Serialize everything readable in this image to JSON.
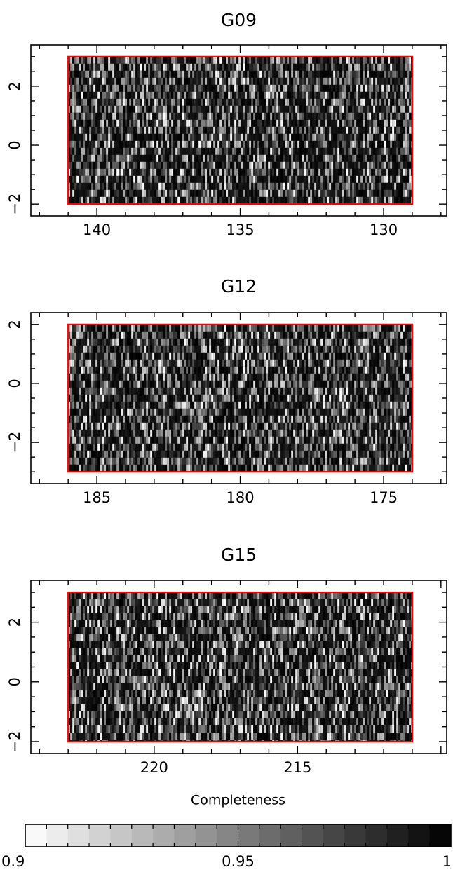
{
  "chart_data": [
    {
      "type": "heatmap",
      "title": "G09",
      "xlim": [
        142.3,
        127.8
      ],
      "ylim": [
        -2.4,
        3.4
      ],
      "x_ticks": [
        140,
        135,
        130
      ],
      "y_ticks": [
        -2,
        0,
        2
      ],
      "x_tick_labels": [
        "140",
        "135",
        "130"
      ],
      "y_tick_labels": [
        "−2",
        "0",
        "2"
      ],
      "region": {
        "ra": [
          141,
          129
        ],
        "dec": [
          -2,
          3
        ],
        "color": "#ff0000"
      },
      "value_range": [
        0.9,
        1.0
      ],
      "colormap": "gray-white-to-black"
    },
    {
      "type": "heatmap",
      "title": "G12",
      "xlim": [
        187.3,
        172.8
      ],
      "ylim": [
        -3.4,
        2.4
      ],
      "x_ticks": [
        185,
        180,
        175
      ],
      "y_ticks": [
        -2,
        0,
        2
      ],
      "x_tick_labels": [
        "185",
        "180",
        "175"
      ],
      "y_tick_labels": [
        "−2",
        "0",
        "2"
      ],
      "region": {
        "ra": [
          186,
          174
        ],
        "dec": [
          -3,
          2
        ],
        "color": "#ff0000"
      },
      "value_range": [
        0.9,
        1.0
      ],
      "colormap": "gray-white-to-black"
    },
    {
      "type": "heatmap",
      "title": "G15",
      "xlim": [
        224.3,
        209.8
      ],
      "ylim": [
        -2.4,
        3.4
      ],
      "x_ticks": [
        220,
        215
      ],
      "y_ticks": [
        -2,
        0,
        2
      ],
      "x_tick_labels": [
        "220",
        "215"
      ],
      "y_tick_labels": [
        "−2",
        "0",
        "2"
      ],
      "region": {
        "ra": [
          223,
          211
        ],
        "dec": [
          -2,
          3
        ],
        "color": "#ff0000"
      },
      "value_range": [
        0.9,
        1.0
      ],
      "colormap": "gray-white-to-black"
    }
  ],
  "colorbar": {
    "title": "Completeness",
    "min": 0.9,
    "max": 1.0,
    "ticks": [
      0.9,
      0.95,
      1.0
    ],
    "tick_labels": [
      "0.9",
      "0.95",
      "1"
    ],
    "n_steps": 20
  }
}
